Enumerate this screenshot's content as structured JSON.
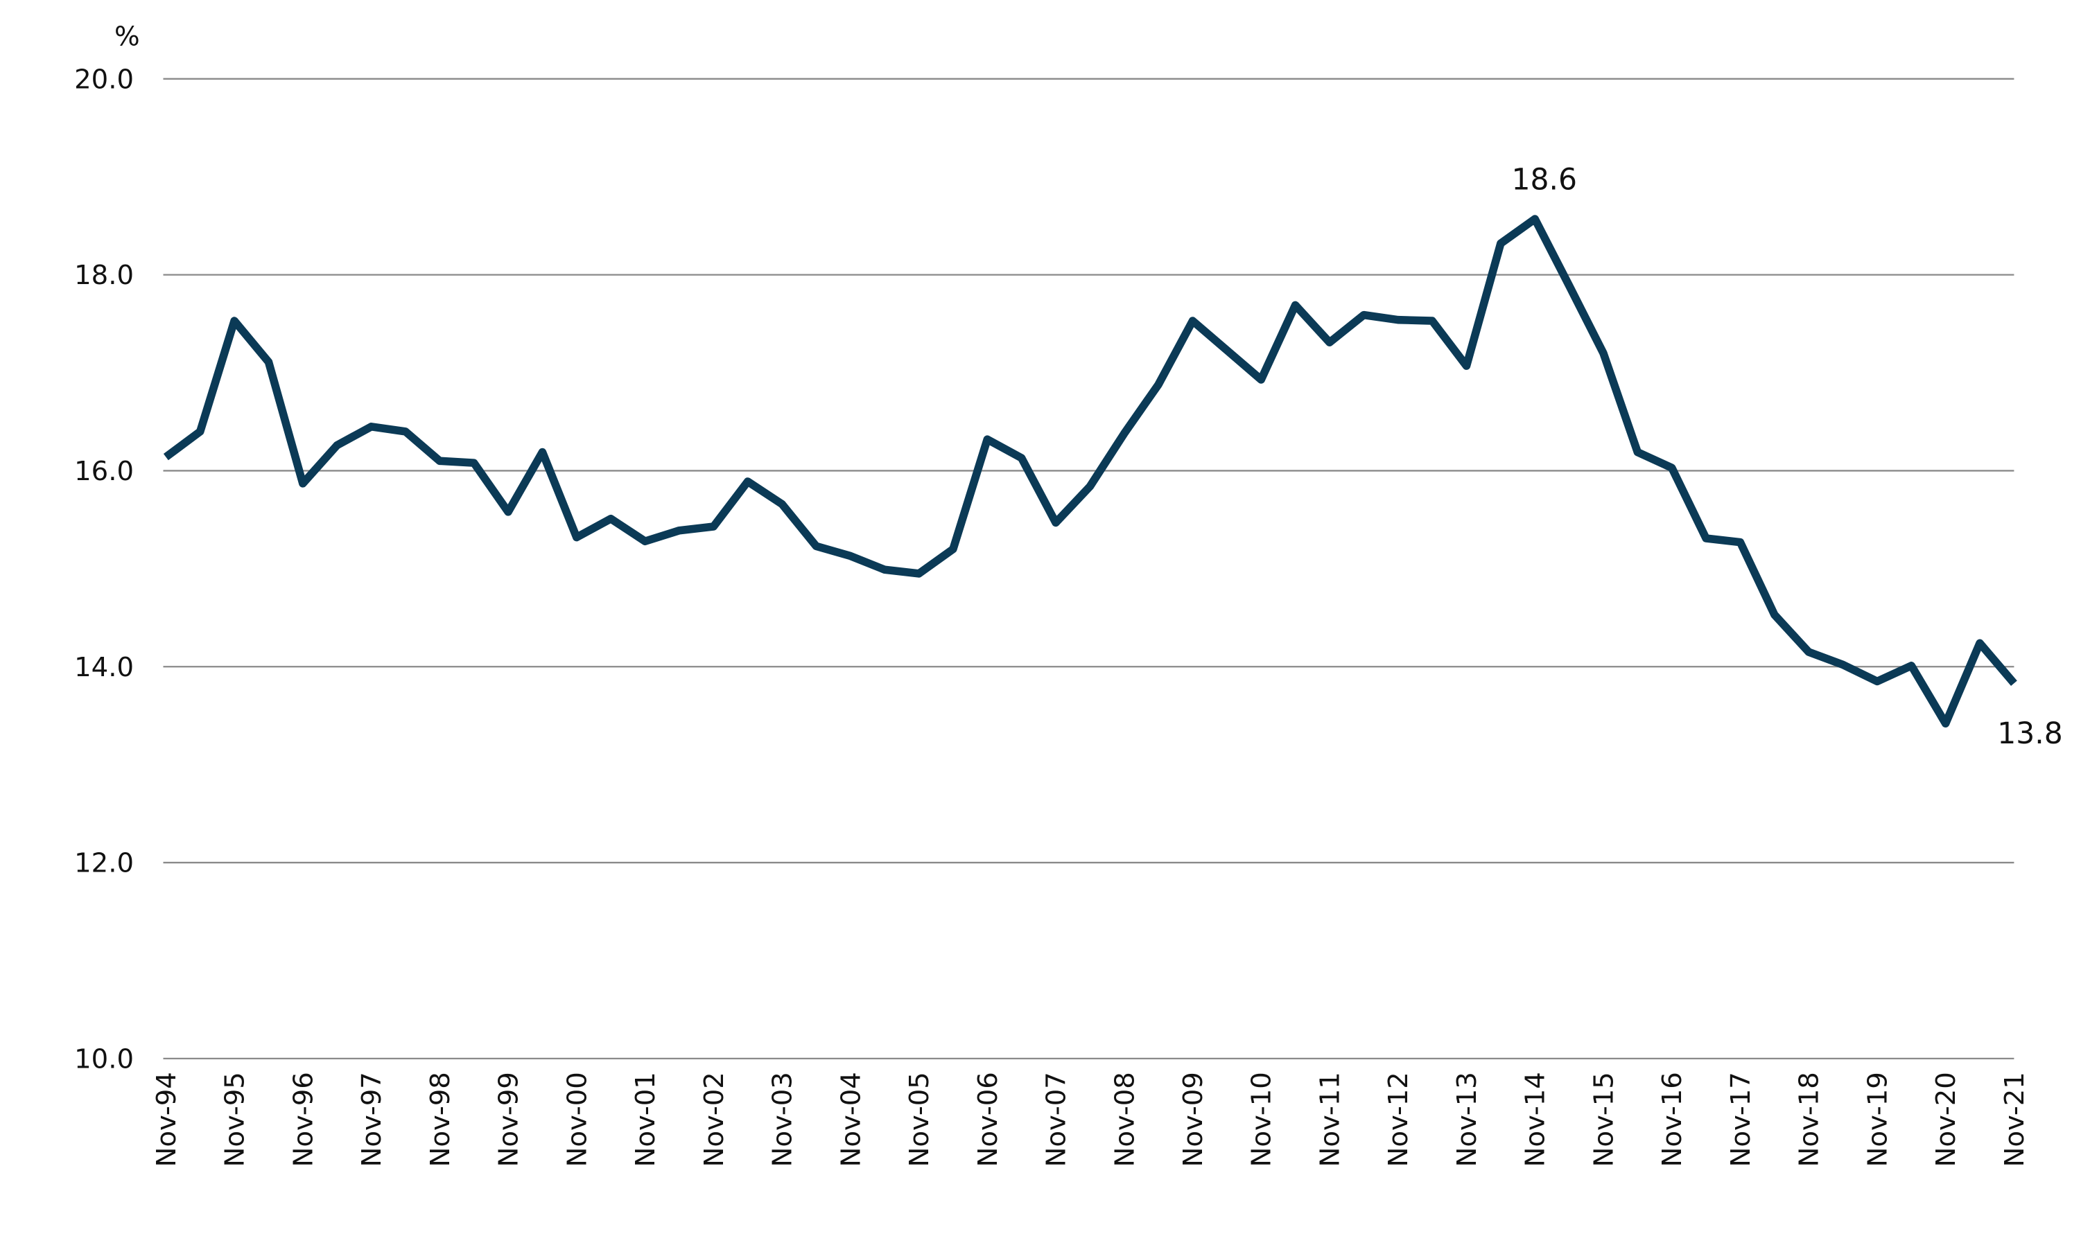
{
  "chart_data": {
    "type": "line",
    "y_label": "%",
    "categories": [
      "Nov-94",
      null,
      "Nov-95",
      null,
      "Nov-96",
      null,
      "Nov-97",
      null,
      "Nov-98",
      null,
      "Nov-99",
      null,
      "Nov-00",
      null,
      "Nov-01",
      null,
      "Nov-02",
      null,
      "Nov-03",
      null,
      "Nov-04",
      null,
      "Nov-05",
      null,
      "Nov-06",
      null,
      "Nov-07",
      null,
      "Nov-08",
      null,
      "Nov-09",
      null,
      "Nov-10",
      null,
      "Nov-11",
      null,
      "Nov-12",
      null,
      "Nov-13",
      null,
      "Nov-14",
      null,
      "Nov-15",
      null,
      "Nov-16",
      null,
      "Nov-17",
      null,
      "Nov-18",
      null,
      "Nov-19",
      null,
      "Nov-20",
      null,
      "Nov-21"
    ],
    "series": [
      {
        "color": "#0b3a56",
        "values": [
          16.14,
          16.4,
          17.53,
          17.11,
          15.87,
          16.26,
          16.45,
          16.4,
          16.1,
          16.08,
          15.58,
          16.19,
          15.32,
          15.51,
          15.28,
          15.39,
          15.43,
          15.89,
          15.66,
          15.23,
          15.13,
          14.99,
          14.95,
          15.2,
          16.32,
          16.13,
          15.47,
          15.84,
          16.38,
          16.88,
          17.53,
          17.23,
          16.93,
          17.69,
          17.31,
          17.59,
          17.54,
          17.53,
          17.07,
          18.32,
          18.57,
          17.89,
          17.2,
          16.19,
          16.03,
          15.31,
          15.27,
          14.53,
          14.15,
          14.02,
          13.85,
          14.01,
          13.42,
          14.24,
          13.83
        ],
        "value_labels": [
          null,
          null,
          null,
          null,
          null,
          null,
          null,
          null,
          null,
          null,
          null,
          null,
          null,
          null,
          null,
          null,
          null,
          null,
          null,
          null,
          null,
          null,
          null,
          null,
          null,
          null,
          null,
          null,
          null,
          null,
          null,
          null,
          null,
          null,
          null,
          null,
          null,
          null,
          null,
          null,
          "18.6",
          null,
          null,
          null,
          null,
          null,
          null,
          null,
          null,
          null,
          null,
          null,
          null,
          null,
          "13.8"
        ]
      }
    ],
    "ylim": [
      10,
      20
    ],
    "yticks": [
      {
        "value": 10,
        "label": "10.0"
      },
      {
        "value": 12,
        "label": "12.0"
      },
      {
        "value": 14,
        "label": "14.0"
      },
      {
        "value": 16,
        "label": "16.0"
      },
      {
        "value": 18,
        "label": "18.0"
      },
      {
        "value": 20,
        "label": "20.0"
      }
    ],
    "grid": true
  }
}
